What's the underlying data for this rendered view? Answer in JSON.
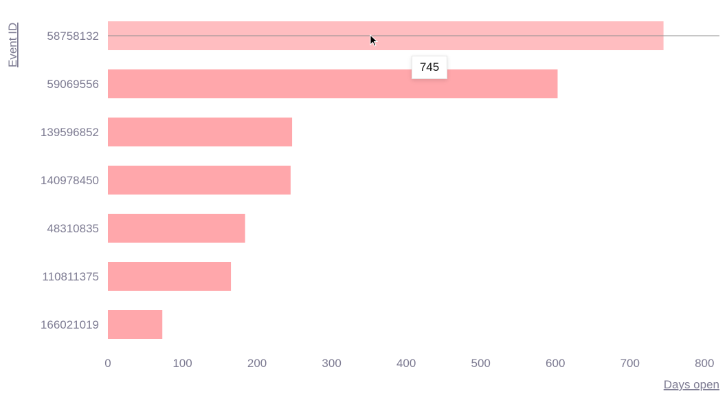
{
  "chart_data": {
    "type": "bar",
    "orientation": "horizontal",
    "categories": [
      "58758132",
      "59069556",
      "139596852",
      "140978450",
      "48310835",
      "110811375",
      "166021019"
    ],
    "values": [
      745,
      603,
      247,
      245,
      184,
      165,
      73
    ],
    "xlabel": "Days open",
    "ylabel": "Event ID",
    "xlim": [
      0,
      820
    ],
    "xticks": [
      0,
      100,
      200,
      300,
      400,
      500,
      600,
      700,
      800
    ],
    "grid": false,
    "bar_color": "#ffa7ab",
    "highlight_color": "#ffbdc0",
    "highlighted_index": 0
  },
  "tooltip": {
    "value": "745"
  },
  "colors": {
    "axis_text": "#7d7b92",
    "crosshair": "#8f8f8f"
  }
}
